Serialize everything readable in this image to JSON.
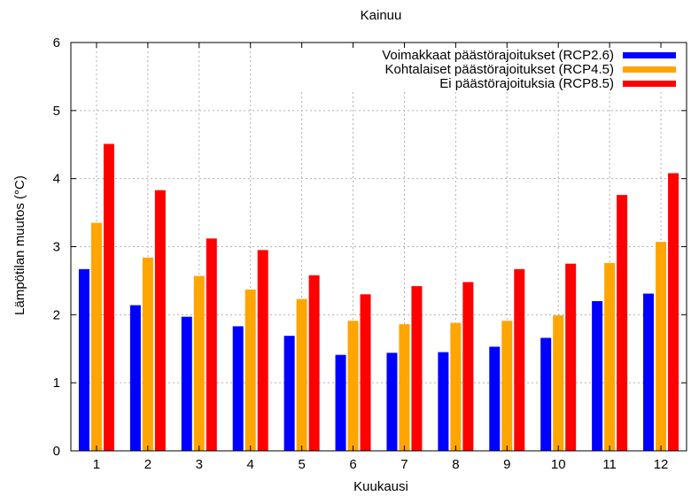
{
  "chart_data": {
    "type": "bar",
    "title": "Kainuu",
    "xlabel": "Kuukausi",
    "ylabel": "Lämpötilan muutos (°C)",
    "categories": [
      "1",
      "2",
      "3",
      "4",
      "5",
      "6",
      "7",
      "8",
      "9",
      "10",
      "11",
      "12"
    ],
    "ylim": [
      0,
      6
    ],
    "yticks": [
      "0",
      "1",
      "2",
      "3",
      "4",
      "5",
      "6"
    ],
    "grid": true,
    "legend_position": "top-right",
    "series": [
      {
        "name": "Voimakkaat päästörajoitukset (RCP2.6)",
        "color": "#0000ff",
        "values": [
          2.67,
          2.14,
          1.97,
          1.83,
          1.69,
          1.41,
          1.44,
          1.45,
          1.53,
          1.66,
          2.2,
          2.31
        ]
      },
      {
        "name": "Kohtalaiset päästörajoitukset (RCP4.5)",
        "color": "#ffa500",
        "values": [
          3.35,
          2.84,
          2.57,
          2.37,
          2.23,
          1.91,
          1.86,
          1.88,
          1.91,
          1.99,
          2.76,
          3.07
        ]
      },
      {
        "name": "Ei päästörajoituksia (RCP8.5)",
        "color": "#ff0000",
        "values": [
          4.51,
          3.83,
          3.12,
          2.95,
          2.58,
          2.3,
          2.42,
          2.48,
          2.67,
          2.75,
          3.76,
          4.08
        ]
      }
    ]
  }
}
